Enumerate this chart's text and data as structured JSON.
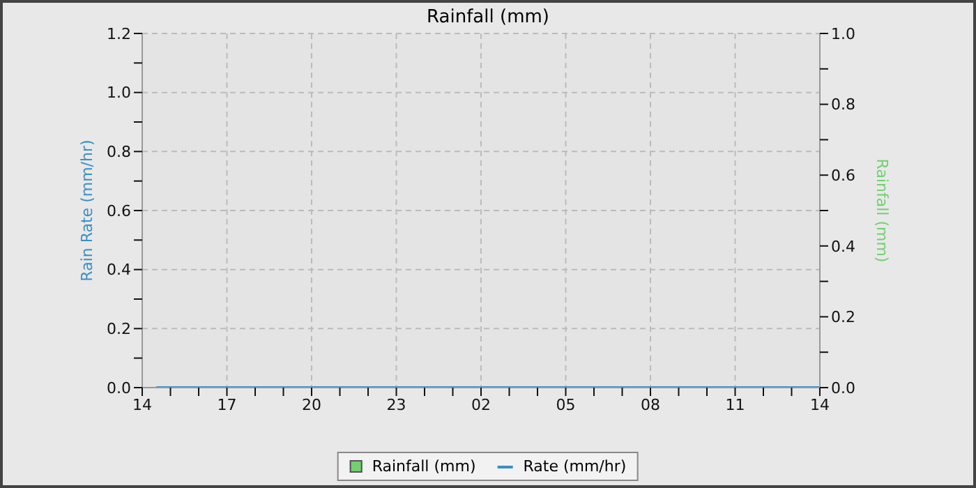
{
  "chart_data": {
    "type": "line",
    "title": "Rainfall (mm)",
    "ylabel": "Rain Rate (mm/hr)",
    "y2label": "Rainfall (mm)",
    "x": [
      "--01-01T14:30",
      "--01-01T20:00",
      "--01-02T02:00",
      "--01-02T08:00",
      "--01-02T14:00"
    ],
    "series": [
      {
        "name": "Rainfall (mm)",
        "type": "bar",
        "axis": "y2",
        "color": "#72d072",
        "values": [
          0,
          0,
          0,
          0,
          0
        ]
      },
      {
        "name": "Rate (mm/hr)",
        "axis": "y",
        "color": "#3a8fc8",
        "values": [
          0,
          0,
          0,
          0,
          0
        ]
      }
    ],
    "xlim": [
      "--01-01T14:00",
      "--01-02T14:00"
    ],
    "xticks": [
      {
        "value": "--01-01T14:00",
        "label": "14"
      },
      {
        "value": "--01-01T15:00",
        "label": null
      },
      {
        "value": "--01-01T16:00",
        "label": null
      },
      {
        "value": "--01-01T17:00",
        "label": "17"
      },
      {
        "value": "--01-01T18:00",
        "label": null
      },
      {
        "value": "--01-01T19:00",
        "label": null
      },
      {
        "value": "--01-01T20:00",
        "label": "20"
      },
      {
        "value": "--01-01T21:00",
        "label": null
      },
      {
        "value": "--01-01T22:00",
        "label": null
      },
      {
        "value": "--01-01T23:00",
        "label": "23"
      },
      {
        "value": "--01-02T00:00",
        "label": null
      },
      {
        "value": "--01-02T01:00",
        "label": null
      },
      {
        "value": "--01-02T02:00",
        "label": "02"
      },
      {
        "value": "--01-02T03:00",
        "label": null
      },
      {
        "value": "--01-02T04:00",
        "label": null
      },
      {
        "value": "--01-02T05:00",
        "label": "05"
      },
      {
        "value": "--01-02T06:00",
        "label": null
      },
      {
        "value": "--01-02T07:00",
        "label": null
      },
      {
        "value": "--01-02T08:00",
        "label": "08"
      },
      {
        "value": "--01-02T09:00",
        "label": null
      },
      {
        "value": "--01-02T10:00",
        "label": null
      },
      {
        "value": "--01-02T11:00",
        "label": "11"
      },
      {
        "value": "--01-02T12:00",
        "label": null
      },
      {
        "value": "--01-02T13:00",
        "label": null
      },
      {
        "value": "--01-02T14:00",
        "label": "14"
      }
    ],
    "ylim": [
      0,
      1.2
    ],
    "yticks": [
      {
        "value": 0,
        "label": "0.0"
      },
      {
        "value": 0.1,
        "label": null
      },
      {
        "value": 0.2,
        "label": "0.2"
      },
      {
        "value": 0.3,
        "label": null
      },
      {
        "value": 0.4,
        "label": "0.4"
      },
      {
        "value": 0.5,
        "label": null
      },
      {
        "value": 0.6,
        "label": "0.6"
      },
      {
        "value": 0.7,
        "label": null
      },
      {
        "value": 0.8,
        "label": "0.8"
      },
      {
        "value": 0.9,
        "label": null
      },
      {
        "value": 1,
        "label": "1.0"
      },
      {
        "value": 1.1,
        "label": null
      },
      {
        "value": 1.2,
        "label": "1.2"
      }
    ],
    "y2lim": [
      0,
      1
    ],
    "y2ticks": [
      {
        "value": 0,
        "label": "0.0"
      },
      {
        "value": 0.1,
        "label": null
      },
      {
        "value": 0.2,
        "label": "0.2"
      },
      {
        "value": 0.3,
        "label": null
      },
      {
        "value": 0.4,
        "label": "0.4"
      },
      {
        "value": 0.5,
        "label": null
      },
      {
        "value": 0.6,
        "label": "0.6"
      },
      {
        "value": 0.7,
        "label": null
      },
      {
        "value": 0.8,
        "label": "0.8"
      },
      {
        "value": 0.9,
        "label": null
      },
      {
        "value": 1,
        "label": "1.0"
      }
    ],
    "grid": true,
    "legend": "bottom",
    "marker": "none",
    "line_style": "solid"
  }
}
